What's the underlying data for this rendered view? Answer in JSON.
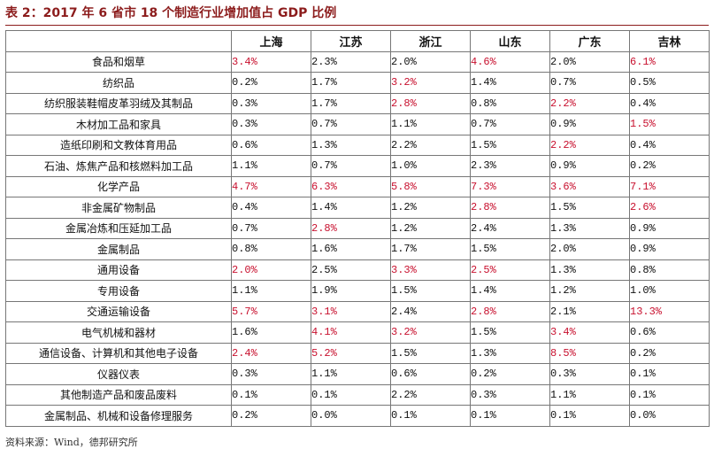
{
  "title": "表 2：2017 年 6 省市 18 个制造行业增加值占 GDP 比例",
  "highlight_color": "#c8102e",
  "columns": [
    "上海",
    "江苏",
    "浙江",
    "山东",
    "广东",
    "吉林"
  ],
  "rows": [
    {
      "category": "食品和烟草",
      "values": [
        "3.4%",
        "2.3%",
        "2.0%",
        "4.6%",
        "2.0%",
        "6.1%"
      ],
      "highlight": [
        true,
        false,
        false,
        true,
        false,
        true
      ]
    },
    {
      "category": "纺织品",
      "values": [
        "0.2%",
        "1.7%",
        "3.2%",
        "1.4%",
        "0.7%",
        "0.5%"
      ],
      "highlight": [
        false,
        false,
        true,
        false,
        false,
        false
      ]
    },
    {
      "category": "纺织服装鞋帽皮革羽绒及其制品",
      "values": [
        "0.3%",
        "1.7%",
        "2.8%",
        "0.8%",
        "2.2%",
        "0.4%"
      ],
      "highlight": [
        false,
        false,
        true,
        false,
        true,
        false
      ]
    },
    {
      "category": "木材加工品和家具",
      "values": [
        "0.3%",
        "0.7%",
        "1.1%",
        "0.7%",
        "0.9%",
        "1.5%"
      ],
      "highlight": [
        false,
        false,
        false,
        false,
        false,
        true
      ]
    },
    {
      "category": "造纸印刷和文教体育用品",
      "values": [
        "0.6%",
        "1.3%",
        "2.2%",
        "1.5%",
        "2.2%",
        "0.4%"
      ],
      "highlight": [
        false,
        false,
        false,
        false,
        true,
        false
      ]
    },
    {
      "category": "石油、炼焦产品和核燃料加工品",
      "values": [
        "1.1%",
        "0.7%",
        "1.0%",
        "2.3%",
        "0.9%",
        "0.2%"
      ],
      "highlight": [
        false,
        false,
        false,
        false,
        false,
        false
      ]
    },
    {
      "category": "化学产品",
      "values": [
        "4.7%",
        "6.3%",
        "5.8%",
        "7.3%",
        "3.6%",
        "7.1%"
      ],
      "highlight": [
        true,
        true,
        true,
        true,
        true,
        true
      ]
    },
    {
      "category": "非金属矿物制品",
      "values": [
        "0.4%",
        "1.4%",
        "1.2%",
        "2.8%",
        "1.5%",
        "2.6%"
      ],
      "highlight": [
        false,
        false,
        false,
        true,
        false,
        true
      ]
    },
    {
      "category": "金属冶炼和压延加工品",
      "values": [
        "0.7%",
        "2.8%",
        "1.2%",
        "2.4%",
        "1.3%",
        "0.9%"
      ],
      "highlight": [
        false,
        true,
        false,
        false,
        false,
        false
      ]
    },
    {
      "category": "金属制品",
      "values": [
        "0.8%",
        "1.6%",
        "1.7%",
        "1.5%",
        "2.0%",
        "0.9%"
      ],
      "highlight": [
        false,
        false,
        false,
        false,
        false,
        false
      ]
    },
    {
      "category": "通用设备",
      "values": [
        "2.0%",
        "2.5%",
        "3.3%",
        "2.5%",
        "1.3%",
        "0.8%"
      ],
      "highlight": [
        true,
        false,
        true,
        true,
        false,
        false
      ]
    },
    {
      "category": "专用设备",
      "values": [
        "1.1%",
        "1.9%",
        "1.5%",
        "1.4%",
        "1.2%",
        "1.0%"
      ],
      "highlight": [
        false,
        false,
        false,
        false,
        false,
        false
      ]
    },
    {
      "category": "交通运输设备",
      "values": [
        "5.7%",
        "3.1%",
        "2.4%",
        "2.8%",
        "2.1%",
        "13.3%"
      ],
      "highlight": [
        true,
        true,
        false,
        true,
        false,
        true
      ]
    },
    {
      "category": "电气机械和器材",
      "values": [
        "1.6%",
        "4.1%",
        "3.2%",
        "1.5%",
        "3.4%",
        "0.6%"
      ],
      "highlight": [
        false,
        true,
        true,
        false,
        true,
        false
      ]
    },
    {
      "category": "通信设备、计算机和其他电子设备",
      "values": [
        "2.4%",
        "5.2%",
        "1.5%",
        "1.3%",
        "8.5%",
        "0.2%"
      ],
      "highlight": [
        true,
        true,
        false,
        false,
        true,
        false
      ]
    },
    {
      "category": "仪器仪表",
      "values": [
        "0.3%",
        "1.1%",
        "0.6%",
        "0.2%",
        "0.3%",
        "0.1%"
      ],
      "highlight": [
        false,
        false,
        false,
        false,
        false,
        false
      ]
    },
    {
      "category": "其他制造产品和废品废料",
      "values": [
        "0.1%",
        "0.1%",
        "2.2%",
        "0.3%",
        "1.1%",
        "0.1%"
      ],
      "highlight": [
        false,
        false,
        false,
        false,
        false,
        false
      ]
    },
    {
      "category": "金属制品、机械和设备修理服务",
      "values": [
        "0.2%",
        "0.0%",
        "0.1%",
        "0.1%",
        "0.1%",
        "0.0%"
      ],
      "highlight": [
        false,
        false,
        false,
        false,
        false,
        false
      ]
    }
  ],
  "footer": "资料来源：Wind，德邦研究所"
}
